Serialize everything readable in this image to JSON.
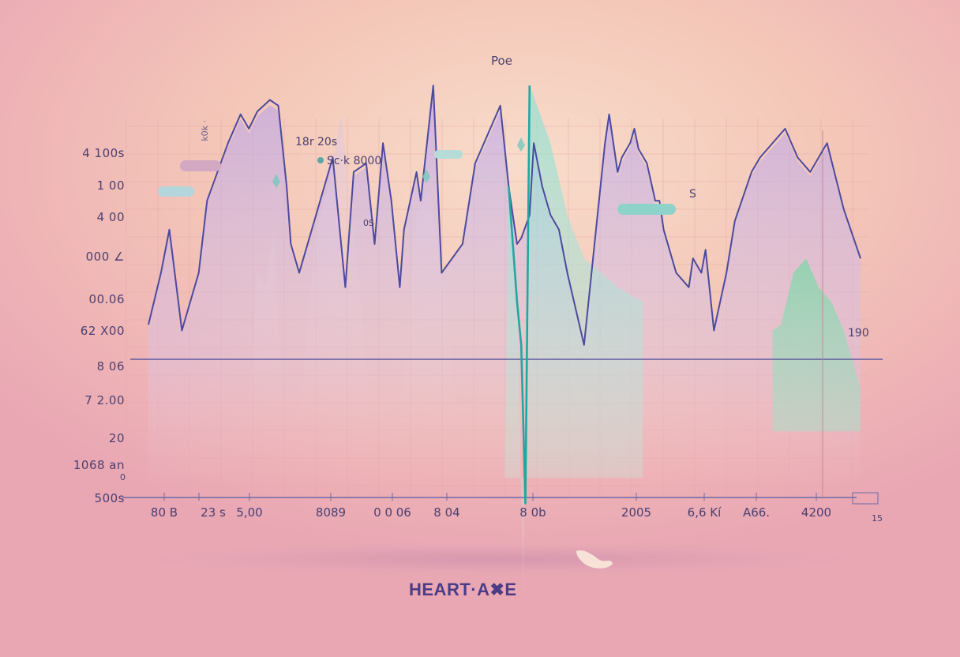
{
  "chart_data": {
    "type": "line",
    "title": "Poe",
    "brand": "HEART·A✖E",
    "y_tick_labels": [
      "4 100s",
      "1 00",
      "4 00",
      "000 ∠",
      "00.06",
      "62 X00",
      "8 06",
      "7 2.00",
      "20",
      "1068 an",
      "500s"
    ],
    "y_tick_zero": "0",
    "x_tick_labels": [
      "80 B",
      "23 s",
      "5,00",
      "8089",
      "0 0 06",
      "8 04",
      "8 0b",
      "2005",
      "6,6 Kí",
      "A66.",
      "4200"
    ],
    "x_axis_end": "15",
    "annotations": [
      "18r 20s",
      "Sc·k 8000",
      "0S",
      "S",
      "190",
      "k0k ·"
    ],
    "series": [
      {
        "color": "#4b4aa0",
        "x": [
          0,
          15,
          25,
          40,
          60,
          70,
          95,
          110,
          120,
          130,
          145,
          155,
          165,
          170,
          180,
          220,
          235,
          245,
          260,
          270,
          280,
          290,
          300,
          305,
          320,
          325,
          340,
          350,
          375,
          390,
          420,
          430,
          440,
          445,
          455,
          460,
          470,
          480,
          490,
          500,
          520,
          545,
          550,
          560,
          565,
          575,
          580,
          585,
          595,
          605,
          610,
          615,
          630,
          645,
          650,
          660,
          665,
          675,
          690,
          700,
          720,
          730,
          760,
          775,
          790,
          810,
          830,
          850
        ],
        "y": [
          12,
          30,
          45,
          10,
          30,
          55,
          75,
          85,
          80,
          86,
          90,
          88,
          60,
          40,
          30,
          70,
          25,
          65,
          68,
          40,
          75,
          55,
          25,
          45,
          65,
          55,
          95,
          30,
          40,
          68,
          88,
          60,
          40,
          42,
          50,
          75,
          60,
          50,
          45,
          30,
          5,
          75,
          85,
          65,
          70,
          75,
          80,
          73,
          68,
          55,
          55,
          45,
          30,
          25,
          35,
          30,
          38,
          10,
          30,
          48,
          65,
          70,
          80,
          70,
          65,
          75,
          52,
          35
        ]
      },
      {
        "color": "#22a7a0",
        "x": [
          430,
          440,
          445,
          450,
          455
        ],
        "y": [
          60,
          20,
          5,
          -50,
          95
        ]
      }
    ],
    "xlim": [
      0,
      850
    ],
    "ylim": [
      -100,
      100
    ],
    "grid": true
  }
}
